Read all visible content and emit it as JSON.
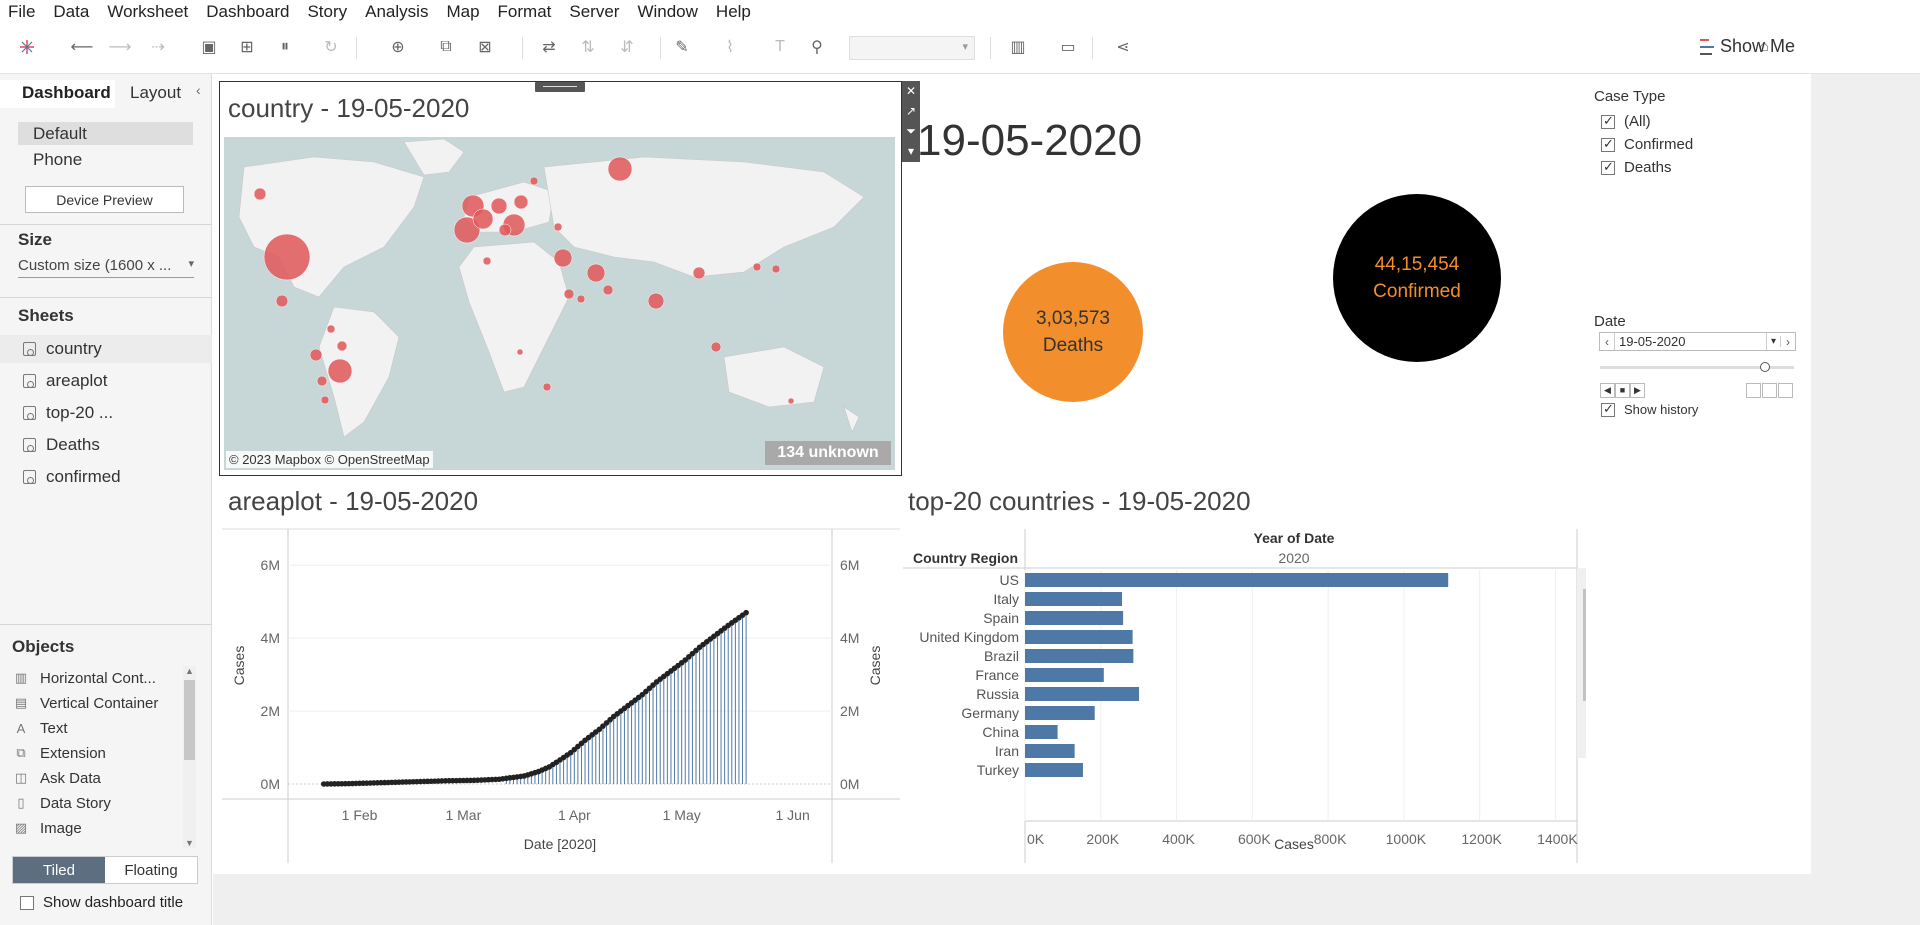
{
  "menu": [
    "File",
    "Data",
    "Worksheet",
    "Dashboard",
    "Story",
    "Analysis",
    "Map",
    "Format",
    "Server",
    "Window",
    "Help"
  ],
  "toolbar": {
    "show_me_label": "Show Me"
  },
  "left_pane": {
    "tabs": {
      "dashboard": "Dashboard",
      "layout": "Layout"
    },
    "devices": [
      {
        "label": "Default",
        "selected": true
      },
      {
        "label": "Phone",
        "selected": false
      }
    ],
    "device_preview_label": "Device Preview",
    "size_heading": "Size",
    "size_value": "Custom size (1600 x ...",
    "sheets_heading": "Sheets",
    "sheets": [
      "country",
      "areaplot",
      "top-20 ...",
      "Deaths",
      "confirmed"
    ],
    "objects_heading": "Objects",
    "objects": [
      {
        "label": "Horizontal Cont...",
        "icon": "horizontal-container-icon"
      },
      {
        "label": "Vertical Container",
        "icon": "vertical-container-icon"
      },
      {
        "label": "Text",
        "icon": "text-icon"
      },
      {
        "label": "Extension",
        "icon": "extension-icon"
      },
      {
        "label": "Ask Data",
        "icon": "ask-data-icon"
      },
      {
        "label": "Data Story",
        "icon": "data-story-icon"
      },
      {
        "label": "Image",
        "icon": "image-icon"
      }
    ],
    "tiled_label": "Tiled",
    "floating_label": "Floating",
    "show_dashboard_title_label": "Show dashboard title"
  },
  "dashboard": {
    "map_title": "country - 19-05-2020",
    "map_credit": "© 2023 Mapbox © OpenStreetMap",
    "map_unknown": "134 unknown",
    "big_date": "19-05-2020",
    "deaths_value": "3,03,573",
    "deaths_label": "Deaths",
    "confirmed_value": "44,15,454",
    "confirmed_label": "Confirmed",
    "area_title": "areaplot - 19-05-2020",
    "top20_title": "top-20 countries - 19-05-2020",
    "filters": {
      "case_type_title": "Case Type",
      "case_type_items": [
        "(All)",
        "Confirmed",
        "Deaths"
      ],
      "date_title": "Date",
      "date_value": "19-05-2020",
      "show_history_label": "Show history"
    }
  },
  "colors": {
    "deaths": "#f28e2b",
    "confirmed_bg": "#000000",
    "bar": "#4e79a7",
    "map_marker": "#e15759"
  },
  "chart_data": [
    {
      "type": "area",
      "title": "areaplot - 19-05-2020",
      "xlabel": "Date [2020]",
      "ylabel": "Cases",
      "x_ticks": [
        "1 Feb",
        "1 Mar",
        "1 Apr",
        "1 May",
        "1 Jun"
      ],
      "y_ticks": [
        "0M",
        "2M",
        "4M",
        "6M"
      ],
      "ylim": [
        0,
        6500000
      ],
      "x": [
        "2020-01-22",
        "2020-01-29",
        "2020-02-05",
        "2020-02-12",
        "2020-02-19",
        "2020-02-26",
        "2020-03-04",
        "2020-03-11",
        "2020-03-18",
        "2020-03-22",
        "2020-03-25",
        "2020-03-28",
        "2020-03-31",
        "2020-04-04",
        "2020-04-08",
        "2020-04-12",
        "2020-04-16",
        "2020-04-20",
        "2020-04-24",
        "2020-04-28",
        "2020-05-02",
        "2020-05-06",
        "2020-05-10",
        "2020-05-14",
        "2020-05-19"
      ],
      "values": [
        0,
        10000,
        30000,
        50000,
        70000,
        90000,
        100000,
        130000,
        220000,
        340000,
        470000,
        660000,
        860000,
        1200000,
        1500000,
        1850000,
        2150000,
        2450000,
        2800000,
        3100000,
        3400000,
        3750000,
        4050000,
        4350000,
        4700000
      ]
    },
    {
      "type": "bar",
      "title": "top-20 countries - 19-05-2020",
      "column_header": "Year of Date",
      "column_value": "2020",
      "row_header": "Country Region",
      "xlabel": "Cases",
      "x_ticks": [
        "0K",
        "200K",
        "400K",
        "600K",
        "800K",
        "1000K",
        "1200K",
        "1400K"
      ],
      "xlim": [
        0,
        1420000
      ],
      "categories": [
        "US",
        "Italy",
        "Spain",
        "United Kingdom",
        "Brazil",
        "France",
        "Russia",
        "Germany",
        "China",
        "Iran",
        "Turkey"
      ],
      "values": [
        1117000,
        256000,
        259000,
        284000,
        286000,
        208000,
        301000,
        184000,
        86000,
        131000,
        153000
      ]
    }
  ]
}
